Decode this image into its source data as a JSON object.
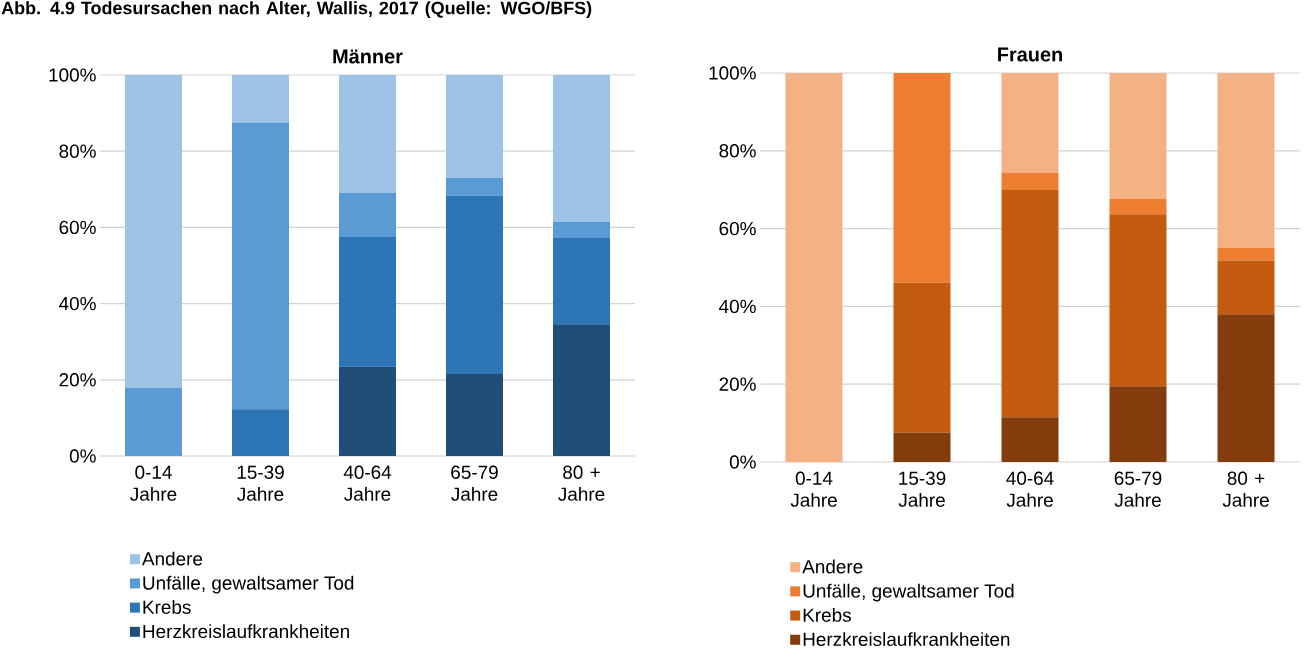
{
  "chart_data": [
    {
      "type": "bar",
      "stacked": true,
      "title": "Männer",
      "annotations": [
        "Abb. 4.9 Todesursachen nach Alter, Wallis, 2017 (Quelle: WGO/BFS)"
      ],
      "categories": [
        "0-14 Jahre",
        "15-39 Jahre",
        "40-64 Jahre",
        "65-79 Jahre",
        "80 + Jahre"
      ],
      "series": [
        {
          "name": "Herzkreislaufkrankheiten",
          "color": "#1f4e79",
          "values": [
            0,
            0,
            23.4,
            21.5,
            34.6
          ]
        },
        {
          "name": "Krebs",
          "color": "#2e75b6",
          "values": [
            0,
            12.3,
            34.1,
            46.8,
            22.6
          ]
        },
        {
          "name": "Unfälle, gewaltsamer Tod",
          "color": "#5b9bd5",
          "values": [
            18,
            75.2,
            11.5,
            4.7,
            4.3
          ]
        },
        {
          "name": "Andere",
          "color": "#9dc3e6",
          "values": [
            82,
            12.5,
            31,
            27,
            38.5
          ]
        }
      ],
      "ylim": [
        0,
        100
      ],
      "yticks": [
        {
          "value": 0,
          "label": "0%"
        },
        {
          "value": 20,
          "label": "20%"
        },
        {
          "value": 40,
          "label": "40%"
        },
        {
          "value": 60,
          "label": "60%"
        },
        {
          "value": 80,
          "label": "80%"
        },
        {
          "value": 100,
          "label": "100%"
        }
      ],
      "grid": "y",
      "legend": "bottom"
    },
    {
      "type": "bar",
      "stacked": true,
      "title": "Frauen",
      "categories": [
        "0-14 Jahre",
        "15-39 Jahre",
        "40-64 Jahre",
        "65-79 Jahre",
        "80 + Jahre"
      ],
      "series": [
        {
          "name": "Herzkreislaufkrankheiten",
          "color": "#843c0c",
          "values": [
            0,
            7.5,
            11.5,
            19.5,
            38.0
          ]
        },
        {
          "name": "Krebs",
          "color": "#c55a11",
          "values": [
            0,
            38.6,
            58.4,
            44.2,
            13.8
          ]
        },
        {
          "name": "Unfälle, gewaltsamer Tod",
          "color": "#ed7d31",
          "values": [
            0,
            53.9,
            4.4,
            3.9,
            3.3
          ]
        },
        {
          "name": "Andere",
          "color": "#f4b183",
          "values": [
            100,
            0,
            25.7,
            32.4,
            44.9
          ]
        }
      ],
      "ylim": [
        0,
        100
      ],
      "yticks": [
        {
          "value": 0,
          "label": "0%"
        },
        {
          "value": 20,
          "label": "20%"
        },
        {
          "value": 40,
          "label": "40%"
        },
        {
          "value": 60,
          "label": "60%"
        },
        {
          "value": 80,
          "label": "80%"
        },
        {
          "value": 100,
          "label": "100%"
        }
      ],
      "grid": "y",
      "legend": "bottom"
    }
  ]
}
